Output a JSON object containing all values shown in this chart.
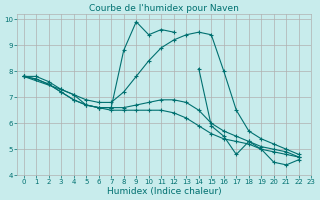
{
  "title": "Courbe de l'humidex pour Naven",
  "xlabel": "Humidex (Indice chaleur)",
  "ylabel": "",
  "bg_color": "#c8ecec",
  "grid_color": "#b0b0b0",
  "line_color": "#007070",
  "xlim": [
    -0.5,
    23
  ],
  "ylim": [
    4,
    10.2
  ],
  "xticks": [
    0,
    1,
    2,
    3,
    4,
    5,
    6,
    7,
    8,
    9,
    10,
    11,
    12,
    13,
    14,
    15,
    16,
    17,
    18,
    19,
    20,
    21,
    22,
    23
  ],
  "yticks": [
    4,
    5,
    6,
    7,
    8,
    9,
    10
  ],
  "series": [
    {
      "x": [
        0,
        1,
        2,
        3,
        4,
        5,
        6,
        7,
        8,
        9,
        10,
        11,
        12,
        13,
        14,
        15,
        16,
        17,
        18,
        19,
        20,
        21,
        22
      ],
      "y": [
        7.8,
        7.8,
        7.6,
        7.3,
        7.1,
        6.7,
        6.6,
        6.6,
        8.8,
        9.9,
        9.4,
        9.6,
        9.5,
        null,
        8.1,
        5.9,
        5.5,
        4.8,
        5.3,
        5.0,
        4.5,
        4.4,
        4.6
      ]
    },
    {
      "x": [
        0,
        3,
        4,
        5,
        6,
        7,
        8,
        9,
        10,
        11,
        12,
        13,
        14,
        15,
        16,
        17,
        18,
        19,
        20,
        21,
        22
      ],
      "y": [
        7.8,
        7.3,
        7.1,
        6.9,
        6.8,
        6.8,
        7.2,
        7.8,
        8.4,
        8.9,
        9.2,
        9.4,
        9.5,
        9.4,
        8.0,
        6.5,
        5.7,
        5.4,
        5.2,
        5.0,
        4.8
      ]
    },
    {
      "x": [
        0,
        1,
        2,
        3,
        4,
        5,
        6,
        7,
        8,
        9,
        10,
        11,
        12,
        13,
        14,
        15,
        16,
        17,
        18,
        19,
        20,
        21,
        22
      ],
      "y": [
        7.8,
        7.7,
        7.5,
        7.2,
        6.9,
        6.7,
        6.6,
        6.6,
        6.6,
        6.7,
        6.8,
        6.9,
        6.9,
        6.8,
        6.5,
        6.0,
        5.7,
        5.5,
        5.3,
        5.1,
        5.0,
        4.9,
        4.7
      ]
    },
    {
      "x": [
        0,
        1,
        2,
        3,
        4,
        5,
        6,
        7,
        8,
        9,
        10,
        11,
        12,
        13,
        14,
        15,
        16,
        17,
        18,
        19,
        20,
        21,
        22
      ],
      "y": [
        7.8,
        7.7,
        7.5,
        7.2,
        6.9,
        6.7,
        6.6,
        6.5,
        6.5,
        6.5,
        6.5,
        6.5,
        6.4,
        6.2,
        5.9,
        5.6,
        5.4,
        5.3,
        5.2,
        5.0,
        4.9,
        4.8,
        4.7
      ]
    }
  ]
}
